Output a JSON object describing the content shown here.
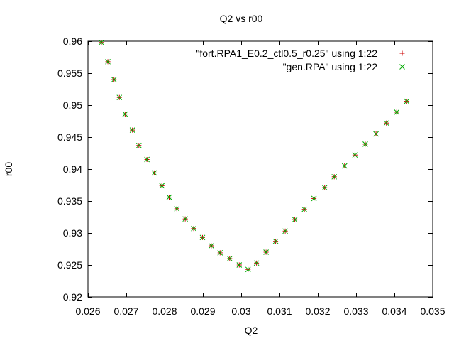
{
  "chart_data": {
    "type": "scatter",
    "title": "Q2 vs r00",
    "xlabel": "Q2",
    "ylabel": "r00",
    "xlim": [
      0.026,
      0.035
    ],
    "ylim": [
      0.92,
      0.96
    ],
    "xticks": [
      "0.026",
      "0.027",
      "0.028",
      "0.029",
      "0.03",
      "0.031",
      "0.032",
      "0.033",
      "0.034",
      "0.035"
    ],
    "yticks": [
      "0.92",
      "0.925",
      "0.93",
      "0.935",
      "0.94",
      "0.945",
      "0.95",
      "0.955",
      "0.96"
    ],
    "grid": false,
    "legend_position": "top-right",
    "series": [
      {
        "name": "\"fort.RPA1_E0.2_ctl0.5_r0.25\" using 1:22",
        "marker": "plus",
        "color": "#cc0000",
        "x": [
          0.02635,
          0.02652,
          0.02668,
          0.02682,
          0.02697,
          0.02716,
          0.02733,
          0.02754,
          0.02773,
          0.02793,
          0.02812,
          0.02832,
          0.02854,
          0.02876,
          0.02899,
          0.02922,
          0.02945,
          0.0297,
          0.02995,
          0.03018,
          0.0304,
          0.03065,
          0.0309,
          0.03115,
          0.0314,
          0.03165,
          0.0319,
          0.03218,
          0.03243,
          0.0327,
          0.03297,
          0.03324,
          0.03352,
          0.03379,
          0.03406,
          0.03432
        ],
        "y": [
          0.9598,
          0.9568,
          0.954,
          0.9512,
          0.9486,
          0.9461,
          0.9437,
          0.9415,
          0.9394,
          0.9374,
          0.9356,
          0.9338,
          0.9322,
          0.9307,
          0.9293,
          0.928,
          0.9269,
          0.926,
          0.925,
          0.9243,
          0.9253,
          0.927,
          0.9287,
          0.9303,
          0.9321,
          0.9337,
          0.9354,
          0.9371,
          0.9388,
          0.9405,
          0.9422,
          0.9439,
          0.9455,
          0.9472,
          0.9489,
          0.9506
        ]
      },
      {
        "name": "\"gen.RPA\" using 1:22",
        "marker": "cross",
        "color": "#00aa00",
        "x": [
          0.02635,
          0.02652,
          0.02668,
          0.02682,
          0.02697,
          0.02716,
          0.02733,
          0.02754,
          0.02773,
          0.02793,
          0.02812,
          0.02832,
          0.02854,
          0.02876,
          0.02899,
          0.02922,
          0.02945,
          0.0297,
          0.02995,
          0.03018,
          0.0304,
          0.03065,
          0.0309,
          0.03115,
          0.0314,
          0.03165,
          0.0319,
          0.03218,
          0.03243,
          0.0327,
          0.03297,
          0.03324,
          0.03352,
          0.03379,
          0.03406,
          0.03432
        ],
        "y": [
          0.9598,
          0.9568,
          0.954,
          0.9512,
          0.9486,
          0.9461,
          0.9437,
          0.9415,
          0.9394,
          0.9374,
          0.9356,
          0.9338,
          0.9322,
          0.9307,
          0.9293,
          0.928,
          0.9269,
          0.926,
          0.925,
          0.9243,
          0.9253,
          0.927,
          0.9287,
          0.9303,
          0.9321,
          0.9337,
          0.9354,
          0.9371,
          0.9388,
          0.9405,
          0.9422,
          0.9439,
          0.9455,
          0.9472,
          0.9489,
          0.9506
        ]
      }
    ]
  }
}
